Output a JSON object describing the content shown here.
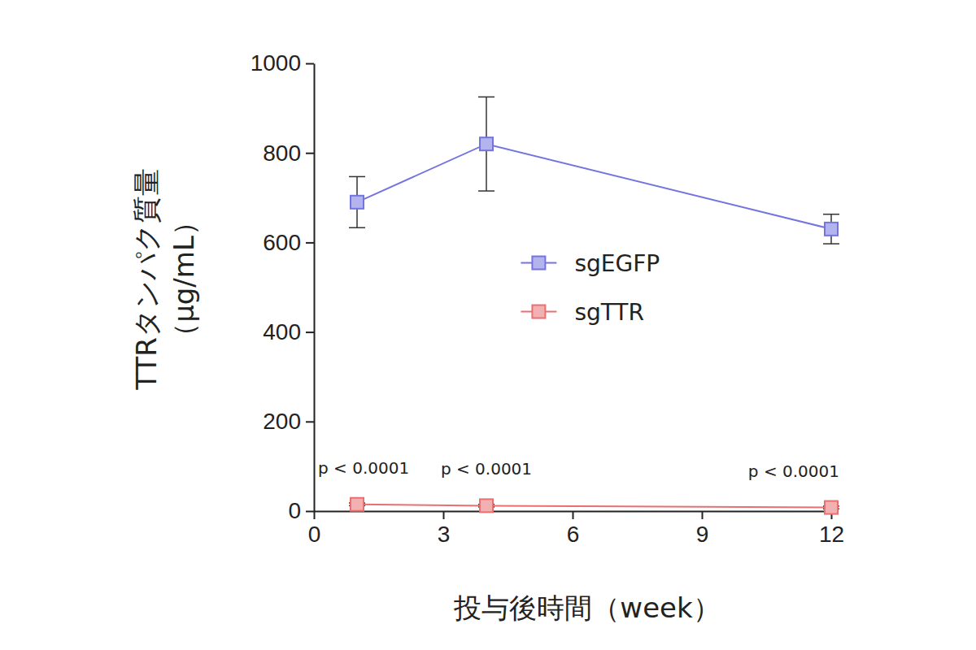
{
  "chart_data": {
    "type": "line",
    "xlabel": "投与後時間（week）",
    "ylabel": [
      "TTRタンパク質量",
      "（μg/mL）"
    ],
    "x": [
      1,
      4,
      12
    ],
    "series": [
      {
        "name": "sgEGFP",
        "color": "#7474e0",
        "marker": "square",
        "values": [
          690,
          820,
          630
        ],
        "errors": [
          57,
          105,
          33
        ]
      },
      {
        "name": "sgTTR",
        "color": "#e87070",
        "marker": "square",
        "values": [
          15,
          12,
          8
        ],
        "errors": [
          3,
          3,
          3
        ]
      }
    ],
    "xlim": [
      0,
      12
    ],
    "xticks": [
      0,
      3,
      6,
      9,
      12
    ],
    "ylim": [
      0,
      1000
    ],
    "yticks": [
      0,
      200,
      400,
      600,
      800,
      1000
    ],
    "annotations": [
      {
        "text": "p < 0.0001",
        "x": 1
      },
      {
        "text": "p < 0.0001",
        "x": 4
      },
      {
        "text": "p < 0.0001",
        "x": 12
      }
    ],
    "legend": "right",
    "grid": false
  }
}
